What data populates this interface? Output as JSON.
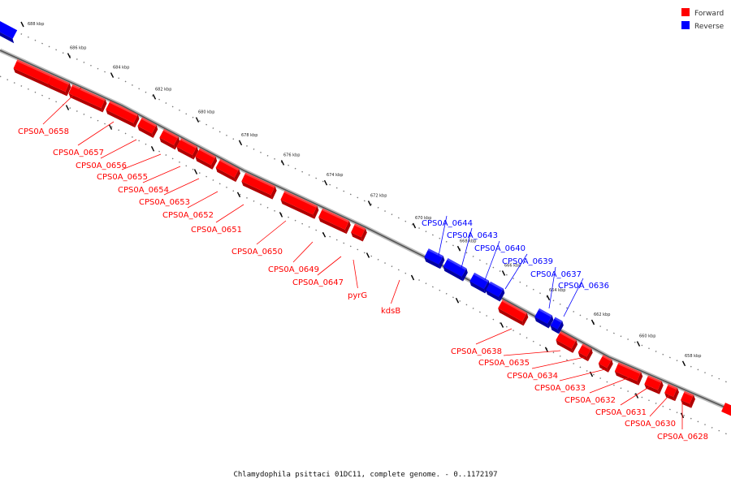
{
  "colors": {
    "forward": "#ff0000",
    "reverse": "#0000ff",
    "forward_side": "#b00000",
    "reverse_side": "#0000a0",
    "backbone": "#888888"
  },
  "legend": [
    {
      "label": "Forward",
      "color": "#ff0000"
    },
    {
      "label": "Reverse",
      "color": "#0000ff"
    }
  ],
  "ticks": [
    "686 kbp",
    "684 kbp",
    "682 kbp",
    "680 kbp",
    "678 kbp",
    "676 kbp",
    "674 kbp",
    "672 kbp",
    "670 kbp",
    "668 kbp",
    "666 kbp",
    "664 kbp",
    "662 kbp",
    "660 kbp",
    "658 kbp"
  ],
  "top_tick": "688 kbp",
  "genes": [
    {
      "label": "CPS0A_0658",
      "strand": "forward"
    },
    {
      "label": "CPS0A_0657",
      "strand": "forward"
    },
    {
      "label": "CPS0A_0656",
      "strand": "forward"
    },
    {
      "label": "CPS0A_0655",
      "strand": "forward"
    },
    {
      "label": "CPS0A_0654",
      "strand": "forward"
    },
    {
      "label": "CPS0A_0653",
      "strand": "forward"
    },
    {
      "label": "CPS0A_0652",
      "strand": "forward"
    },
    {
      "label": "CPS0A_0651",
      "strand": "forward"
    },
    {
      "label": "CPS0A_0650",
      "strand": "forward"
    },
    {
      "label": "CPS0A_0649",
      "strand": "forward"
    },
    {
      "label": "CPS0A_0647",
      "strand": "forward"
    },
    {
      "label": "pyrG",
      "strand": "forward"
    },
    {
      "label": "kdsB",
      "strand": "forward"
    },
    {
      "label": "CPS0A_0644",
      "strand": "reverse"
    },
    {
      "label": "CPS0A_0643",
      "strand": "reverse"
    },
    {
      "label": "CPS0A_0640",
      "strand": "reverse"
    },
    {
      "label": "CPS0A_0639",
      "strand": "reverse"
    },
    {
      "label": "CPS0A_0637",
      "strand": "reverse"
    },
    {
      "label": "CPS0A_0636",
      "strand": "reverse"
    },
    {
      "label": "CPS0A_0638",
      "strand": "forward"
    },
    {
      "label": "CPS0A_0635",
      "strand": "forward"
    },
    {
      "label": "CPS0A_0634",
      "strand": "forward"
    },
    {
      "label": "CPS0A_0633",
      "strand": "forward"
    },
    {
      "label": "CPS0A_0632",
      "strand": "forward"
    },
    {
      "label": "CPS0A_0631",
      "strand": "forward"
    },
    {
      "label": "CPS0A_0630",
      "strand": "forward"
    },
    {
      "label": "CPS0A_0628",
      "strand": "forward"
    }
  ],
  "caption": "Chlamydophila psittaci 01DC11, complete genome. - 0..1172197"
}
